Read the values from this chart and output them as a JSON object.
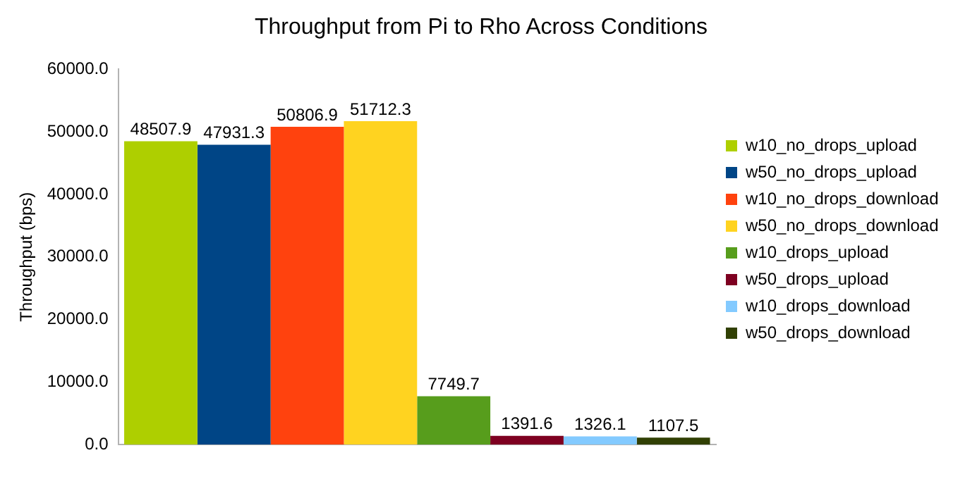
{
  "chart_data": {
    "type": "bar",
    "title": "Throughput from Pi to Rho Across Conditions",
    "ylabel": "Throughput (bps)",
    "categories": [
      null
    ],
    "series": [
      {
        "name": "w10_no_drops_upload",
        "color": "#aecf00",
        "values": [
          48507.9
        ]
      },
      {
        "name": "w50_no_drops_upload",
        "color": "#004586",
        "values": [
          47931.3
        ]
      },
      {
        "name": "w10_no_drops_download",
        "color": "#ff420e",
        "values": [
          50806.9
        ]
      },
      {
        "name": "w50_no_drops_download",
        "color": "#ffd320",
        "values": [
          51712.3
        ]
      },
      {
        "name": "w10_drops_upload",
        "color": "#579d1c",
        "values": [
          7749.7
        ]
      },
      {
        "name": "w50_drops_upload",
        "color": "#7e0021",
        "values": [
          1391.6
        ]
      },
      {
        "name": "w10_drops_download",
        "color": "#83caff",
        "values": [
          1326.1
        ]
      },
      {
        "name": "w50_drops_download",
        "color": "#314004",
        "values": [
          1107.5
        ]
      }
    ],
    "ylim": [
      0,
      60000
    ],
    "yticks": [
      {
        "value": 0,
        "label": "0.0"
      },
      {
        "value": 10000,
        "label": "10000.0"
      },
      {
        "value": 20000,
        "label": "20000.0"
      },
      {
        "value": 30000,
        "label": "30000.0"
      },
      {
        "value": 40000,
        "label": "40000.0"
      },
      {
        "value": 50000,
        "label": "50000.0"
      },
      {
        "value": 60000,
        "label": "60000.0"
      }
    ],
    "data_labels": true,
    "legend": "right",
    "grid": false
  }
}
